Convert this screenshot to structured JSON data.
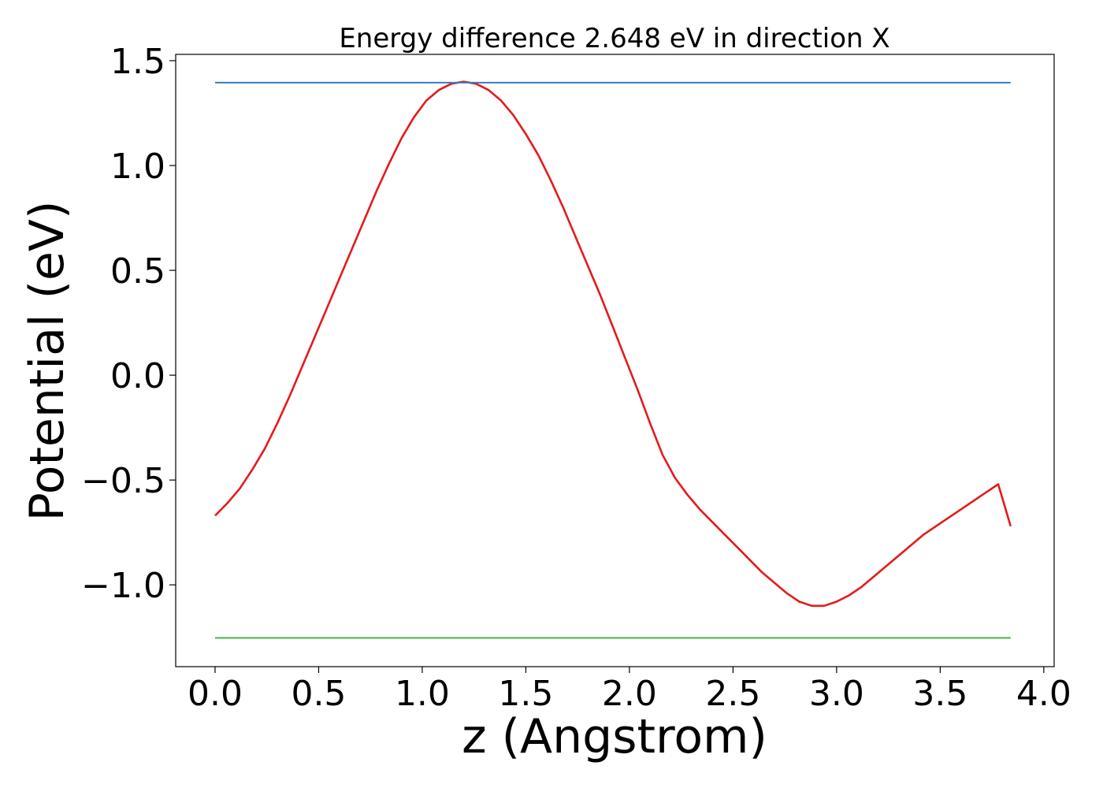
{
  "chart_data": {
    "type": "line",
    "title": "Energy difference 2.648 eV in direction X",
    "xlabel": "z (Angstrom)",
    "ylabel": "Potential (eV)",
    "xlim": [
      -0.19,
      4.05
    ],
    "ylim": [
      -1.39,
      1.53
    ],
    "xticks": [
      0.0,
      0.5,
      1.0,
      1.5,
      2.0,
      2.5,
      3.0,
      3.5,
      4.0
    ],
    "xtick_labels": [
      "0.0",
      "0.5",
      "1.0",
      "1.5",
      "2.0",
      "2.5",
      "3.0",
      "3.5",
      "4.0"
    ],
    "yticks": [
      -1.0,
      -0.5,
      0.0,
      0.5,
      1.0,
      1.5
    ],
    "ytick_labels": [
      "−1.0",
      "−0.5",
      "0.0",
      "0.5",
      "1.0",
      "1.5"
    ],
    "grid": false,
    "legend": "none",
    "series": [
      {
        "color": "#e41a1c",
        "x": [
          0.0,
          0.06,
          0.12,
          0.18,
          0.24,
          0.3,
          0.36,
          0.42,
          0.48,
          0.54,
          0.6,
          0.66,
          0.72,
          0.78,
          0.84,
          0.9,
          0.96,
          1.02,
          1.08,
          1.14,
          1.2,
          1.26,
          1.32,
          1.38,
          1.44,
          1.5,
          1.56,
          1.62,
          1.68,
          1.74,
          1.8,
          1.86,
          1.92,
          1.98,
          2.04,
          2.1,
          2.16,
          2.22,
          2.28,
          2.34,
          2.4,
          2.46,
          2.52,
          2.58,
          2.64,
          2.7,
          2.76,
          2.82,
          2.88,
          2.94,
          3.0,
          3.06,
          3.12,
          3.18,
          3.24,
          3.3,
          3.36,
          3.42,
          3.48,
          3.54,
          3.6,
          3.66,
          3.72,
          3.78,
          3.84
        ],
        "y": [
          -0.67,
          -0.61,
          -0.54,
          -0.45,
          -0.35,
          -0.23,
          -0.1,
          0.04,
          0.18,
          0.32,
          0.46,
          0.6,
          0.74,
          0.88,
          1.01,
          1.13,
          1.23,
          1.31,
          1.36,
          1.39,
          1.4,
          1.39,
          1.36,
          1.31,
          1.24,
          1.15,
          1.05,
          0.93,
          0.8,
          0.66,
          0.52,
          0.38,
          0.23,
          0.08,
          -0.07,
          -0.23,
          -0.38,
          -0.49,
          -0.57,
          -0.64,
          -0.7,
          -0.76,
          -0.82,
          -0.88,
          -0.94,
          -0.99,
          -1.04,
          -1.08,
          -1.1,
          -1.1,
          -1.08,
          -1.05,
          -1.01,
          -0.96,
          -0.91,
          -0.86,
          -0.81,
          -0.76,
          -0.72,
          -0.68,
          -0.64,
          -0.6,
          -0.56,
          -0.52,
          -0.72
        ]
      },
      {
        "color": "#377eb8",
        "x": [
          0.0,
          3.84
        ],
        "y": [
          1.395,
          1.395
        ]
      },
      {
        "color": "#4daf4a",
        "x": [
          0.0,
          3.84
        ],
        "y": [
          -1.253,
          -1.253
        ]
      }
    ]
  }
}
